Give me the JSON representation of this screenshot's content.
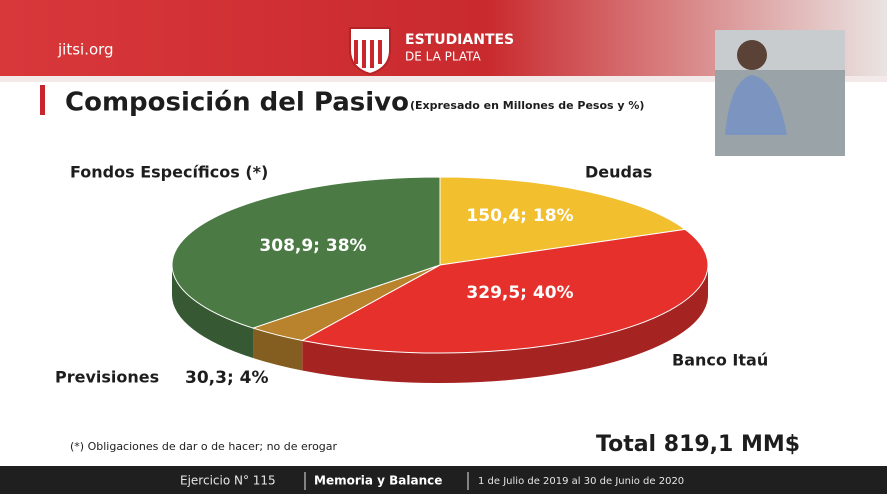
{
  "header": {
    "brand": "jitsi.org",
    "club_line1": "ESTUDIANTES",
    "club_line2": "DE LA PLATA"
  },
  "chart_data": {
    "type": "pie",
    "title": "Composición del Pasivo",
    "subtitle": "(Expresado en  Millones de Pesos y %)",
    "categories": [
      "Deudas",
      "Banco Itaú",
      "Previsiones",
      "Fondos Específicos (*)"
    ],
    "values": [
      150.4,
      329.5,
      30.3,
      308.9
    ],
    "value_labels": [
      "150,4; 18%",
      "329,5; 40%",
      "30,3; 4%",
      "308,9; 38%"
    ],
    "colors": [
      "#f2bf2e",
      "#e5302c",
      "#b8832c",
      "#4b7a45"
    ],
    "note": "(*) Obligaciones de dar o de hacer; no de erogar",
    "total": "Total 819,1 MM$"
  },
  "footer": {
    "exercise": "Ejercicio N° 115",
    "document": "Memoria y Balance",
    "period": "1 de Julio de 2019 al 30 de Junio de 2020"
  }
}
